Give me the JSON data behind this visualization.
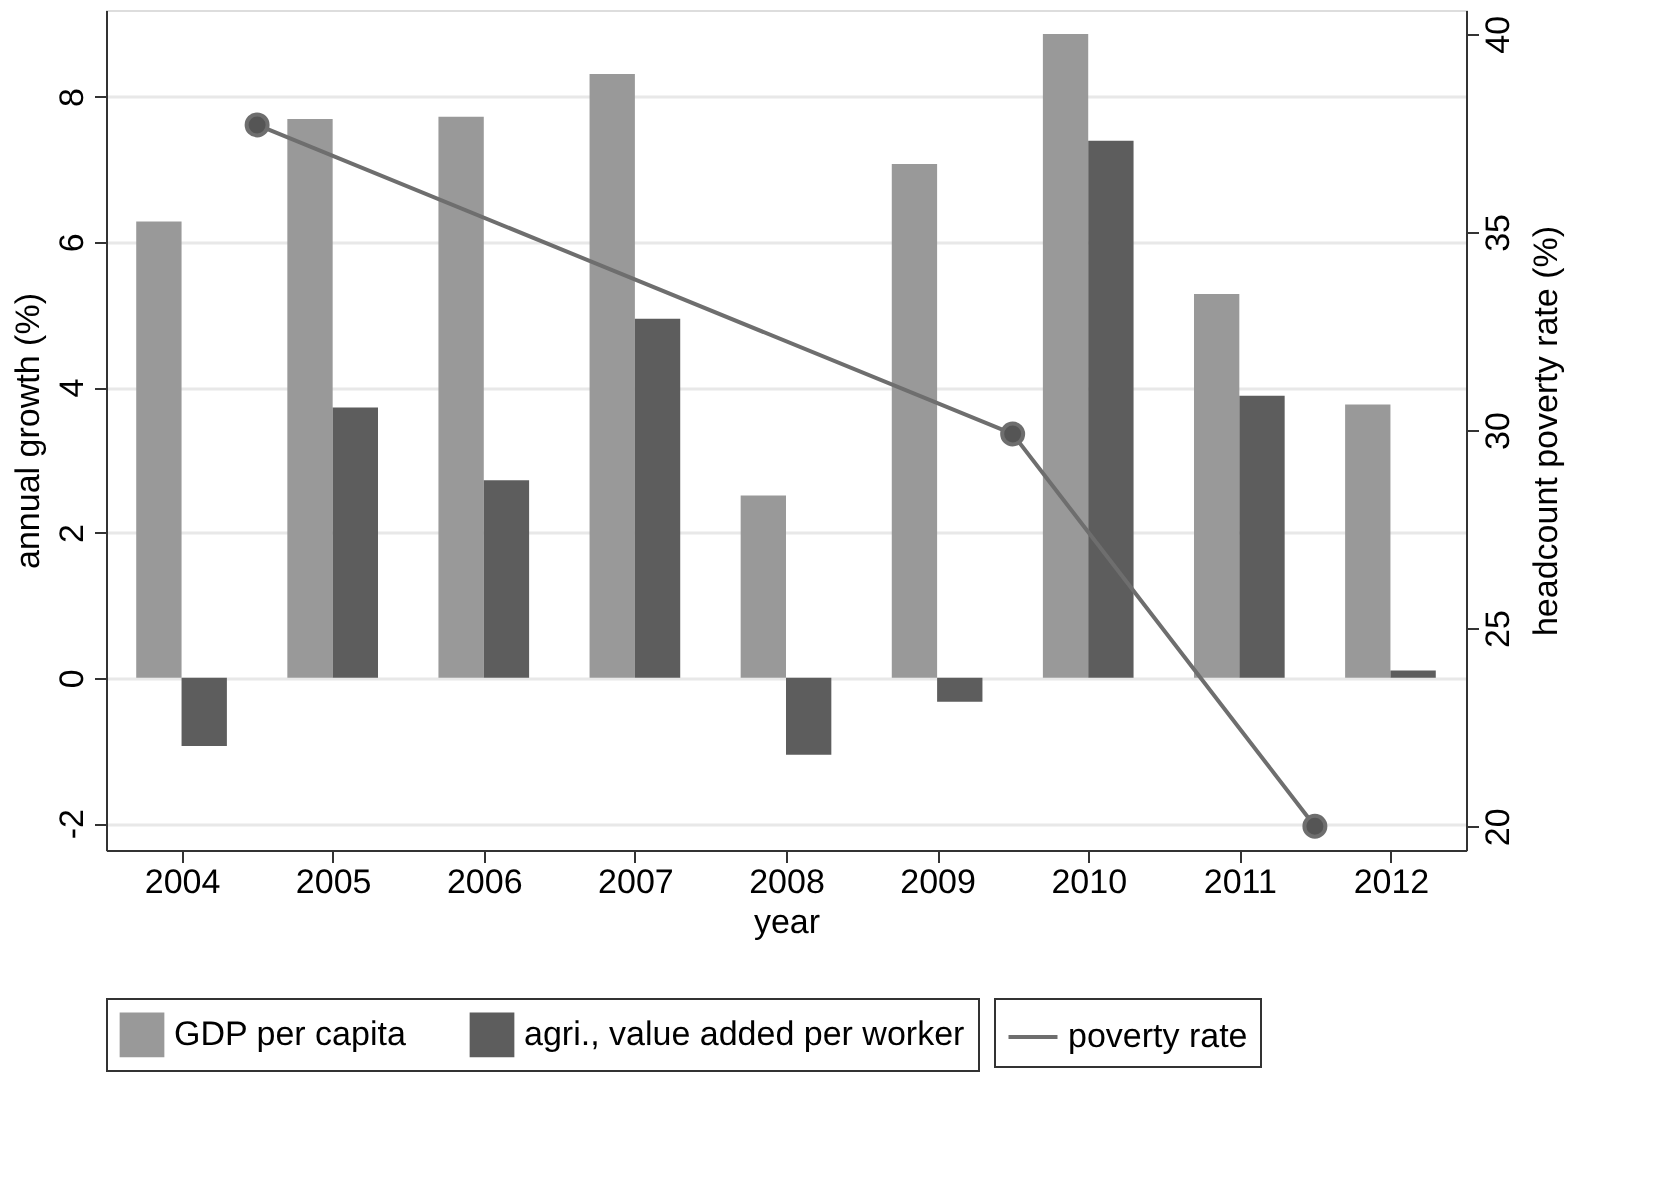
{
  "chart_data": {
    "type": "bar",
    "xlabel": "year",
    "ylabel": "annual growth (%)",
    "y2label": "headcount poverty rate (%)",
    "x": [
      2004,
      2005,
      2006,
      2007,
      2008,
      2009,
      2010,
      2011,
      2012
    ],
    "xlim": [
      2003.5,
      2012.5
    ],
    "xticks": [
      2004,
      2005,
      2006,
      2007,
      2008,
      2009,
      2010,
      2011,
      2012
    ],
    "ylim": [
      -2.37,
      9.19
    ],
    "yticks": [
      -2,
      0,
      2,
      4,
      6,
      8
    ],
    "y2lim": [
      19.4,
      40.6
    ],
    "y2ticks": [
      20,
      25,
      30,
      35,
      40
    ],
    "grid": "y",
    "legend": "bottom",
    "series": [
      {
        "name": "GDP per capita",
        "color": "#999999",
        "values": [
          6.28,
          7.69,
          7.72,
          8.31,
          2.51,
          7.07,
          8.86,
          5.28,
          3.76
        ]
      },
      {
        "name": "agri., value added per worker",
        "color": "#5d5d5d",
        "values": [
          -0.94,
          3.72,
          2.72,
          4.94,
          -1.06,
          -0.33,
          7.39,
          3.88,
          0.1
        ]
      },
      {
        "name": "poverty rate",
        "type": "line",
        "axis": "y2",
        "color": "#6e6e6e",
        "marker": "circle",
        "x": [
          2004.5,
          2009.5,
          2011.5
        ],
        "values": [
          37.7,
          29.9,
          20.0
        ]
      }
    ]
  }
}
